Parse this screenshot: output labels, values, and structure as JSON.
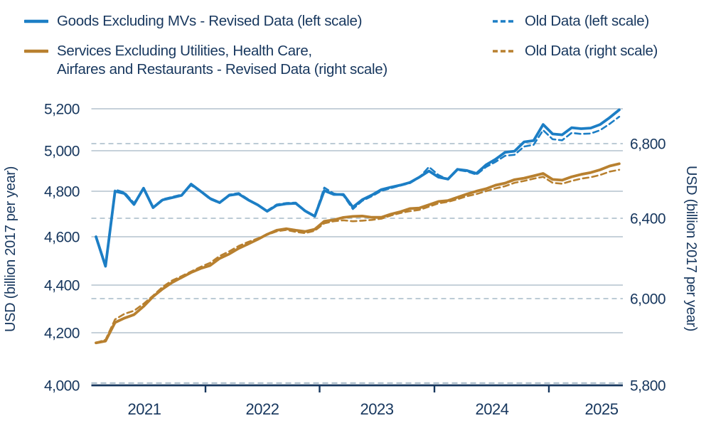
{
  "legend": {
    "items": [
      {
        "label": "Goods Excluding MVs - Revised Data (left scale)",
        "style": "solid",
        "color": "#1c7ec5"
      },
      {
        "label": "Old Data (left scale)",
        "style": "dashed",
        "color": "#1c7ec5"
      },
      {
        "label_line1": "Services Excluding Utilities, Health Care,",
        "label_line2": "Airfares and Restaurants - Revised Data (right scale)",
        "style": "solid",
        "color": "#b8802f"
      },
      {
        "label": "Old Data (right scale)",
        "style": "dashed",
        "color": "#b8802f"
      }
    ]
  },
  "axes": {
    "left": {
      "title": "USD (billion 2017 per year)",
      "ticks": [
        {
          "label": "4,000",
          "value": 4000
        },
        {
          "label": "4,200",
          "value": 4200
        },
        {
          "label": "4,400",
          "value": 4400
        },
        {
          "label": "4,600",
          "value": 4600
        },
        {
          "label": "4,800",
          "value": 4800
        },
        {
          "label": "5,000",
          "value": 5000
        },
        {
          "label": "5,200",
          "value": 5200
        }
      ]
    },
    "right": {
      "title": "USD (billion 2017 per year)",
      "ticks": [
        {
          "label": "5,800",
          "value": 5800
        },
        {
          "label": "6,000",
          "value": 6000
        },
        {
          "label": "6,400",
          "value": 6400
        },
        {
          "label": "6,800",
          "value": 6800
        }
      ]
    },
    "x": {
      "tick_labels": [
        "2021",
        "2022",
        "2023",
        "2024",
        "2025"
      ]
    }
  },
  "chart_data": {
    "type": "line",
    "x_unit": "month",
    "x_start": "2021-01",
    "x_end": "2025-08",
    "grid": {
      "left_gridlines": "solid",
      "right_gridlines": "dashed"
    },
    "left_axis": {
      "label": "USD (billion 2017 per year)",
      "range": [
        4000,
        5200
      ]
    },
    "right_axis": {
      "label": "USD (billion 2017 per year)",
      "range": [
        5800,
        7000
      ]
    },
    "series": [
      {
        "name": "Goods Excluding MVs - Revised Data",
        "axis": "left",
        "style": "solid",
        "color": "#1c7ec5",
        "values": [
          4600,
          4478,
          4800,
          4790,
          4742,
          4815,
          4728,
          4762,
          4772,
          4782,
          4835,
          4800,
          4768,
          4750,
          4782,
          4788,
          4762,
          4740,
          4712,
          4738,
          4745,
          4747,
          4713,
          4690,
          4803,
          4786,
          4786,
          4730,
          4763,
          4783,
          4808,
          4820,
          4830,
          4843,
          4870,
          4900,
          4870,
          4860,
          4908,
          4902,
          4888,
          4930,
          4958,
          4992,
          4998,
          5042,
          5048,
          5125,
          5080,
          5076,
          5110,
          5105,
          5108,
          5125,
          5158,
          5195
        ]
      },
      {
        "name": "Old Data (left scale)",
        "axis": "left",
        "style": "dashed",
        "color": "#1c7ec5",
        "values": [
          4600,
          4478,
          4808,
          4795,
          4748,
          4812,
          4730,
          4765,
          4775,
          4785,
          4830,
          4798,
          4765,
          4748,
          4785,
          4792,
          4765,
          4738,
          4715,
          4742,
          4748,
          4750,
          4710,
          4692,
          4818,
          4790,
          4782,
          4722,
          4758,
          4778,
          4802,
          4815,
          4828,
          4840,
          4868,
          4920,
          4880,
          4858,
          4905,
          4898,
          4882,
          4920,
          4945,
          4975,
          4980,
          5020,
          5028,
          5098,
          5055,
          5050,
          5085,
          5080,
          5082,
          5098,
          5128,
          5162
        ]
      },
      {
        "name": "Services Excluding Utilities, Health Care, Airfares and Restaurants - Revised Data",
        "axis": "right",
        "style": "solid",
        "color": "#b8802f",
        "values": [
          5898,
          5902,
          5945,
          5955,
          5963,
          5982,
          6010,
          6048,
          6080,
          6105,
          6130,
          6150,
          6165,
          6200,
          6222,
          6250,
          6272,
          6295,
          6320,
          6340,
          6348,
          6340,
          6334,
          6345,
          6385,
          6392,
          6404,
          6410,
          6412,
          6405,
          6405,
          6422,
          6435,
          6452,
          6455,
          6472,
          6490,
          6495,
          6512,
          6530,
          6545,
          6558,
          6577,
          6588,
          6607,
          6615,
          6627,
          6640,
          6608,
          6604,
          6622,
          6635,
          6645,
          6660,
          6680,
          6692
        ]
      },
      {
        "name": "Old Data (right scale)",
        "axis": "right",
        "style": "dashed",
        "color": "#b8802f",
        "values": [
          5898,
          5905,
          5952,
          5965,
          5972,
          5988,
          6015,
          6058,
          6090,
          6112,
          6135,
          6158,
          6178,
          6212,
          6235,
          6262,
          6282,
          6300,
          6318,
          6335,
          6342,
          6332,
          6326,
          6338,
          6375,
          6385,
          6390,
          6385,
          6388,
          6392,
          6398,
          6415,
          6428,
          6438,
          6445,
          6462,
          6480,
          6488,
          6502,
          6518,
          6530,
          6545,
          6560,
          6572,
          6590,
          6600,
          6612,
          6622,
          6590,
          6585,
          6600,
          6612,
          6620,
          6632,
          6650,
          6660
        ]
      }
    ]
  }
}
